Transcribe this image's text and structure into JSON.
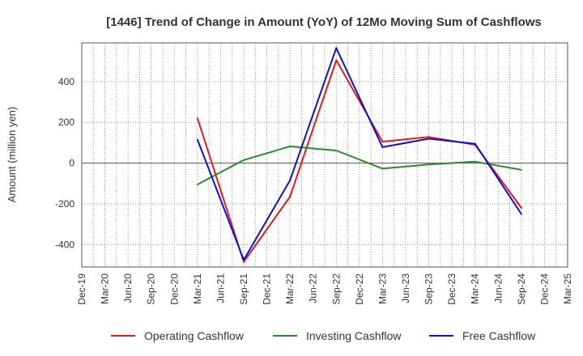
{
  "chart_data": {
    "type": "line",
    "title": "[1446]  Trend of Change in Amount (YoY) of 12Mo Moving Sum of Cashflows",
    "xlabel": "",
    "ylabel": "Amount (million yen)",
    "ylim": [
      -510,
      590
    ],
    "yticks": [
      -400,
      -200,
      0,
      200,
      400
    ],
    "ytick_labels": [
      "-400",
      "-200",
      "0",
      "200",
      "400"
    ],
    "grid": true,
    "legend_position": "bottom",
    "categories": [
      "Dec-19",
      "Mar-20",
      "Jun-20",
      "Sep-20",
      "Dec-20",
      "Mar-21",
      "Jun-21",
      "Sep-21",
      "Dec-21",
      "Mar-22",
      "Jun-22",
      "Sep-22",
      "Dec-22",
      "Mar-23",
      "Jun-23",
      "Sep-23",
      "Dec-23",
      "Mar-24",
      "Jun-24",
      "Sep-24",
      "Dec-24",
      "Mar-25"
    ],
    "series": [
      {
        "name": "Operating Cashflow",
        "color": "#e31a1c",
        "values": [
          null,
          null,
          null,
          null,
          null,
          220,
          null,
          -485,
          null,
          -165,
          null,
          505,
          null,
          105,
          null,
          128,
          null,
          90,
          null,
          -220,
          null,
          null
        ]
      },
      {
        "name": "Investing Cashflow",
        "color": "#2a8a2a",
        "values": [
          null,
          null,
          null,
          null,
          null,
          -105,
          null,
          15,
          null,
          82,
          null,
          62,
          null,
          -27,
          null,
          -7,
          null,
          7,
          null,
          -33,
          null,
          null
        ]
      },
      {
        "name": "Free Cashflow",
        "color": "#1010cc",
        "values": [
          null,
          null,
          null,
          null,
          null,
          115,
          null,
          -475,
          null,
          -85,
          null,
          565,
          null,
          78,
          null,
          120,
          null,
          95,
          null,
          -250,
          null,
          null
        ]
      }
    ]
  }
}
